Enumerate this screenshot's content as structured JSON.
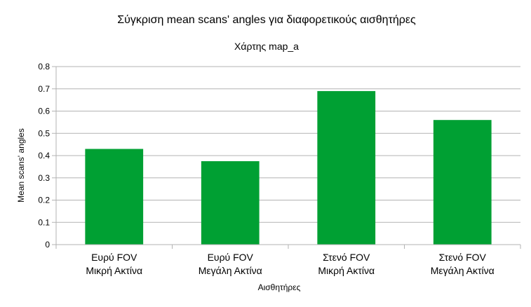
{
  "chart_data": {
    "type": "bar",
    "title": "Σύγκριση mean scans' angles για διαφορετικούς αισθητήρες",
    "subtitle": "Χάρτης map_a",
    "xlabel": "Αισθητήρες",
    "ylabel": "Mean scans' angles",
    "categories": [
      [
        "Ευρύ FOV",
        "Μικρή Ακτίνα"
      ],
      [
        "Ευρύ FOV",
        "Μεγάλη Ακτίνα"
      ],
      [
        "Στενό FOV",
        "Μικρή Ακτίνα"
      ],
      [
        "Στενό FOV",
        "Μεγάλη Ακτίνα"
      ]
    ],
    "values": [
      0.43,
      0.375,
      0.69,
      0.56
    ],
    "ylim": [
      0,
      0.8
    ],
    "yticks": [
      "0",
      "0.1",
      "0.2",
      "0.3",
      "0.4",
      "0.5",
      "0.6",
      "0.7",
      "0.8"
    ],
    "grid": true,
    "legend": "none",
    "bar_color": "#00a033"
  }
}
